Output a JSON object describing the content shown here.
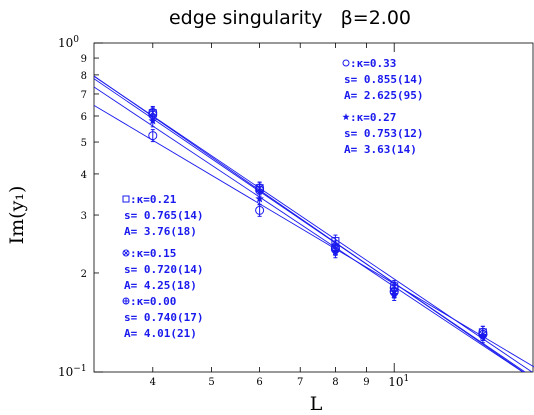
{
  "chart_data": {
    "type": "scatter",
    "title": "edge singularity   β=2.00",
    "xlabel": "L",
    "ylabel": "Im(y₁)",
    "xscale": "log",
    "yscale": "log",
    "xlim": [
      3.2,
      17.0
    ],
    "ylim": [
      0.1,
      1.0
    ],
    "x_ticks": [
      {
        "value": 4,
        "label": "4"
      },
      {
        "value": 5,
        "label": "5"
      },
      {
        "value": 6,
        "label": "6"
      },
      {
        "value": 7,
        "label": "7"
      },
      {
        "value": 8,
        "label": "8"
      },
      {
        "value": 9,
        "label": "9"
      }
    ],
    "x_major_ticks": [
      {
        "value": 10,
        "base": "10",
        "exp": "1"
      }
    ],
    "y_ticks": [
      {
        "value": 0.2,
        "label": "2"
      },
      {
        "value": 0.3,
        "label": "3"
      },
      {
        "value": 0.4,
        "label": "4"
      },
      {
        "value": 0.5,
        "label": "5"
      },
      {
        "value": 0.6,
        "label": "6"
      },
      {
        "value": 0.7,
        "label": "7"
      },
      {
        "value": 0.8,
        "label": "8"
      },
      {
        "value": 0.9,
        "label": "9"
      }
    ],
    "y_major_ticks": [
      {
        "value": 1.0,
        "base": "10",
        "exp": "0"
      },
      {
        "value": 0.1,
        "base": "10",
        "exp": "−1"
      }
    ],
    "series": [
      {
        "marker": "circle",
        "kappa": "0.33",
        "s": 0.855,
        "A": 2.625,
        "points": [
          {
            "x": 4,
            "y": 0.523
          },
          {
            "x": 6,
            "y": 0.31
          },
          {
            "x": 8,
            "y": 0.24
          },
          {
            "x": 10,
            "y": 0.18
          },
          {
            "x": 14,
            "y": 0.132
          }
        ]
      },
      {
        "marker": "star",
        "kappa": "0.27",
        "s": 0.753,
        "A": 3.63,
        "points": [
          {
            "x": 4,
            "y": 0.58
          },
          {
            "x": 6,
            "y": 0.336
          },
          {
            "x": 8,
            "y": 0.232
          },
          {
            "x": 10,
            "y": 0.172
          },
          {
            "x": 14,
            "y": 0.128
          }
        ]
      },
      {
        "marker": "square",
        "kappa": "0.21",
        "s": 0.765,
        "A": 3.76,
        "points": [
          {
            "x": 4,
            "y": 0.612
          },
          {
            "x": 6,
            "y": 0.362
          },
          {
            "x": 8,
            "y": 0.25
          },
          {
            "x": 10,
            "y": 0.182
          },
          {
            "x": 14,
            "y": 0.132
          }
        ]
      },
      {
        "marker": "circle-cross",
        "kappa": "0.15",
        "s": 0.72,
        "A": 4.25,
        "points": [
          {
            "x": 4,
            "y": 0.615
          },
          {
            "x": 6,
            "y": 0.362
          },
          {
            "x": 8,
            "y": 0.236
          },
          {
            "x": 10,
            "y": 0.175
          },
          {
            "x": 14,
            "y": 0.13
          }
        ]
      },
      {
        "marker": "circle-plus",
        "kappa": "0.00",
        "s": 0.74,
        "A": 4.01,
        "points": [
          {
            "x": 4,
            "y": 0.605
          },
          {
            "x": 6,
            "y": 0.357
          },
          {
            "x": 8,
            "y": 0.237
          },
          {
            "x": 10,
            "y": 0.176
          },
          {
            "x": 14,
            "y": 0.13
          }
        ]
      }
    ],
    "annotations": [
      {
        "marker": "circle",
        "lines": [
          ":κ=0.33",
          "s=  0.855(14)",
          "A=  2.625(95)"
        ]
      },
      {
        "marker": "star",
        "lines": [
          ":κ=0.27",
          "s=  0.753(12)",
          "A=   3.63(14)"
        ]
      },
      {
        "marker": "square",
        "lines": [
          ":κ=0.21",
          "s=  0.765(14)",
          "A=   3.76(18)"
        ]
      },
      {
        "marker": "circle-cross",
        "lines": [
          ":κ=0.15",
          "s=  0.720(14)",
          "A=   4.25(18)"
        ]
      },
      {
        "marker": "circle-plus",
        "lines": [
          ":κ=0.00",
          "s=  0.740(17)",
          "A=   4.01(21)"
        ]
      }
    ],
    "colors": {
      "data": "#1a1aee",
      "axes": "#000000"
    }
  }
}
